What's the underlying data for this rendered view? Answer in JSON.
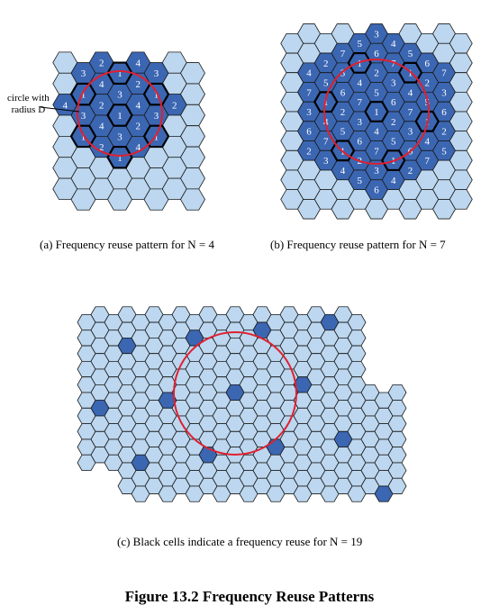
{
  "colors": {
    "light_cell": "#bcd7ef",
    "dark_cell": "#3b66b2",
    "cell_stroke": "#1a1a1a",
    "circle": "#e02030",
    "cell_label": "#ffffff"
  },
  "figure_title": "Figure 13.2  Frequency Reuse Patterns",
  "panels": [
    {
      "id": "a",
      "caption": "(a)  Frequency reuse pattern for N = 4",
      "annotation_line1": "circle with",
      "annotation_line2": "radius D",
      "reuse_factor": 4
    },
    {
      "id": "b",
      "caption": "(b)  Frequency reuse pattern for N  = 7",
      "reuse_factor": 7
    },
    {
      "id": "c",
      "caption": "(c) Black cells indicate a frequency reuse for N  = 19",
      "reuse_factor": 19
    }
  ]
}
